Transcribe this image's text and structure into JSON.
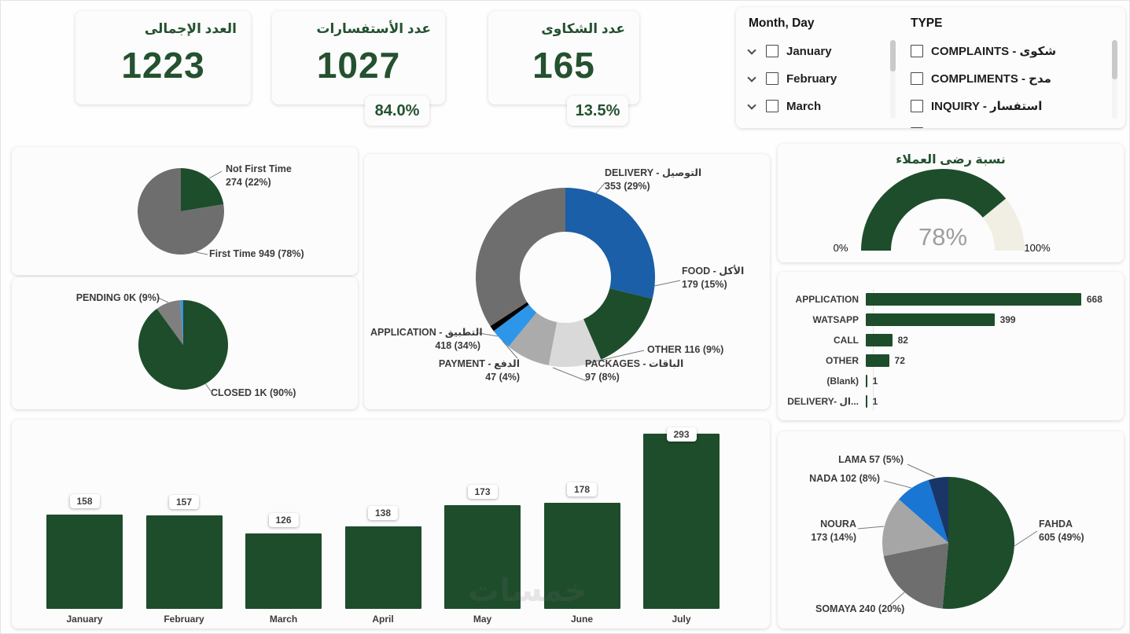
{
  "kpis": {
    "total": {
      "title": "العدد الإجمالى",
      "value": "1223"
    },
    "inquiries": {
      "title": "عدد الأستفسارات",
      "value": "1027",
      "percent": "84.0%"
    },
    "complaints": {
      "title": "عدد الشكاوى",
      "value": "165",
      "percent": "13.5%"
    }
  },
  "filters": {
    "month_day": {
      "title": "Month, Day",
      "items": [
        "January",
        "February",
        "March"
      ]
    },
    "type": {
      "title": "TYPE",
      "items": [
        "COMPLAINTS - شكوى",
        "COMPLIMENTS - مدح",
        "INQUIRY - استفسار"
      ]
    }
  },
  "watermark": "خمسات",
  "colors": {
    "primary_green": "#1E4D2B",
    "gray": "#6E6E6E",
    "blue": "#1A5FA8",
    "light_blue": "#2E96E8",
    "light_gray": "#D9D9D9",
    "mid_gray": "#ABABAB",
    "navy": "#1A3668",
    "gauge_track": "#F1EFE4"
  },
  "chart_data": [
    {
      "id": "first_time_pie",
      "type": "pie",
      "slices": [
        {
          "label": "Not First Time",
          "value": 274,
          "percent": "22%",
          "color": "#1E4D2B",
          "callout": [
            "Not First Time",
            "274 (22%)"
          ]
        },
        {
          "label": "First Time",
          "value": 949,
          "percent": "78%",
          "color": "#6E6E6E",
          "callout": [
            "First Time 949 (78%)"
          ]
        }
      ]
    },
    {
      "id": "status_pie",
      "type": "pie",
      "slices": [
        {
          "label": "CLOSED",
          "value": 90,
          "percent": "90%",
          "color": "#1E4D2B",
          "callout": [
            "CLOSED 1K (90%)"
          ]
        },
        {
          "label": "PENDING",
          "value": 9,
          "percent": "9%",
          "color": "#7F7F7F",
          "callout": [
            "PENDING 0K (9%)"
          ]
        },
        {
          "label": "",
          "value": 1,
          "percent": "",
          "color": "#2E96E8",
          "callout": []
        }
      ]
    },
    {
      "id": "category_donut",
      "type": "pie",
      "donut": true,
      "slices": [
        {
          "label": "DELIVERY - التوصيل",
          "value": 353,
          "percent": "29%",
          "color": "#1A5FA8",
          "callout": [
            "DELIVERY - التوصيل",
            "353 (29%)"
          ]
        },
        {
          "label": "FOOD - الأكل",
          "value": 179,
          "percent": "15%",
          "color": "#1E4D2B",
          "callout": [
            "FOOD - الأكل",
            "179 (15%)"
          ]
        },
        {
          "label": "OTHER",
          "value": 116,
          "percent": "9%",
          "color": "#D9D9D9",
          "callout": [
            "OTHER 116 (9%)"
          ]
        },
        {
          "label": "PACKAGES - الباقات",
          "value": 97,
          "percent": "8%",
          "color": "#ABABAB",
          "callout": [
            "PACKAGES - الباقات",
            "97 (8%)"
          ]
        },
        {
          "label": "PAYMENT - الدفع",
          "value": 47,
          "percent": "4%",
          "color": "#2E96E8",
          "callout": [
            "PAYMENT - الدفع",
            "47 (4%)"
          ]
        },
        {
          "label": "",
          "value": 13,
          "percent": "",
          "color": "#000000",
          "callout": []
        },
        {
          "label": "APPLICATION - التطبيق",
          "value": 418,
          "percent": "34%",
          "color": "#6E6E6E",
          "callout": [
            "APPLICATION - التطبيق",
            "418 (34%)"
          ]
        }
      ]
    },
    {
      "id": "satisfaction_gauge",
      "type": "gauge",
      "title": "نسبة رضى العملاء",
      "value": 78,
      "display": "78%",
      "min": "0%",
      "max": "100%",
      "color": "#1E4D2B",
      "track": "#F1EFE4"
    },
    {
      "id": "channel_bars",
      "type": "bar",
      "orientation": "horizontal",
      "categories": [
        "APPLICATION",
        "WATSAPP",
        "CALL",
        "OTHER",
        "(Blank)",
        "DELIVERY- ال..."
      ],
      "values": [
        668,
        399,
        82,
        72,
        1,
        1
      ],
      "color": "#1E4D2B"
    },
    {
      "id": "monthly_columns",
      "type": "bar",
      "orientation": "vertical",
      "categories": [
        "January",
        "February",
        "March",
        "April",
        "May",
        "June",
        "July"
      ],
      "values": [
        158,
        157,
        126,
        138,
        173,
        178,
        293
      ],
      "color": "#1E4D2B"
    },
    {
      "id": "agent_pie",
      "type": "pie",
      "slices": [
        {
          "label": "FAHDA",
          "value": 605,
          "percent": "49%",
          "color": "#1E4D2B",
          "callout": [
            "FAHDA",
            "605 (49%)"
          ]
        },
        {
          "label": "SOMAYA",
          "value": 240,
          "percent": "20%",
          "color": "#6E6E6E",
          "callout": [
            "SOMAYA 240 (20%)"
          ]
        },
        {
          "label": "NOURA",
          "value": 173,
          "percent": "14%",
          "color": "#A6A6A6",
          "callout": [
            "NOURA",
            "173 (14%)"
          ]
        },
        {
          "label": "NADA",
          "value": 102,
          "percent": "8%",
          "color": "#1976D2",
          "callout": [
            "NADA 102 (8%)"
          ]
        },
        {
          "label": "LAMA",
          "value": 57,
          "percent": "5%",
          "color": "#1A3668",
          "callout": [
            "LAMA 57 (5%)"
          ]
        }
      ]
    }
  ]
}
